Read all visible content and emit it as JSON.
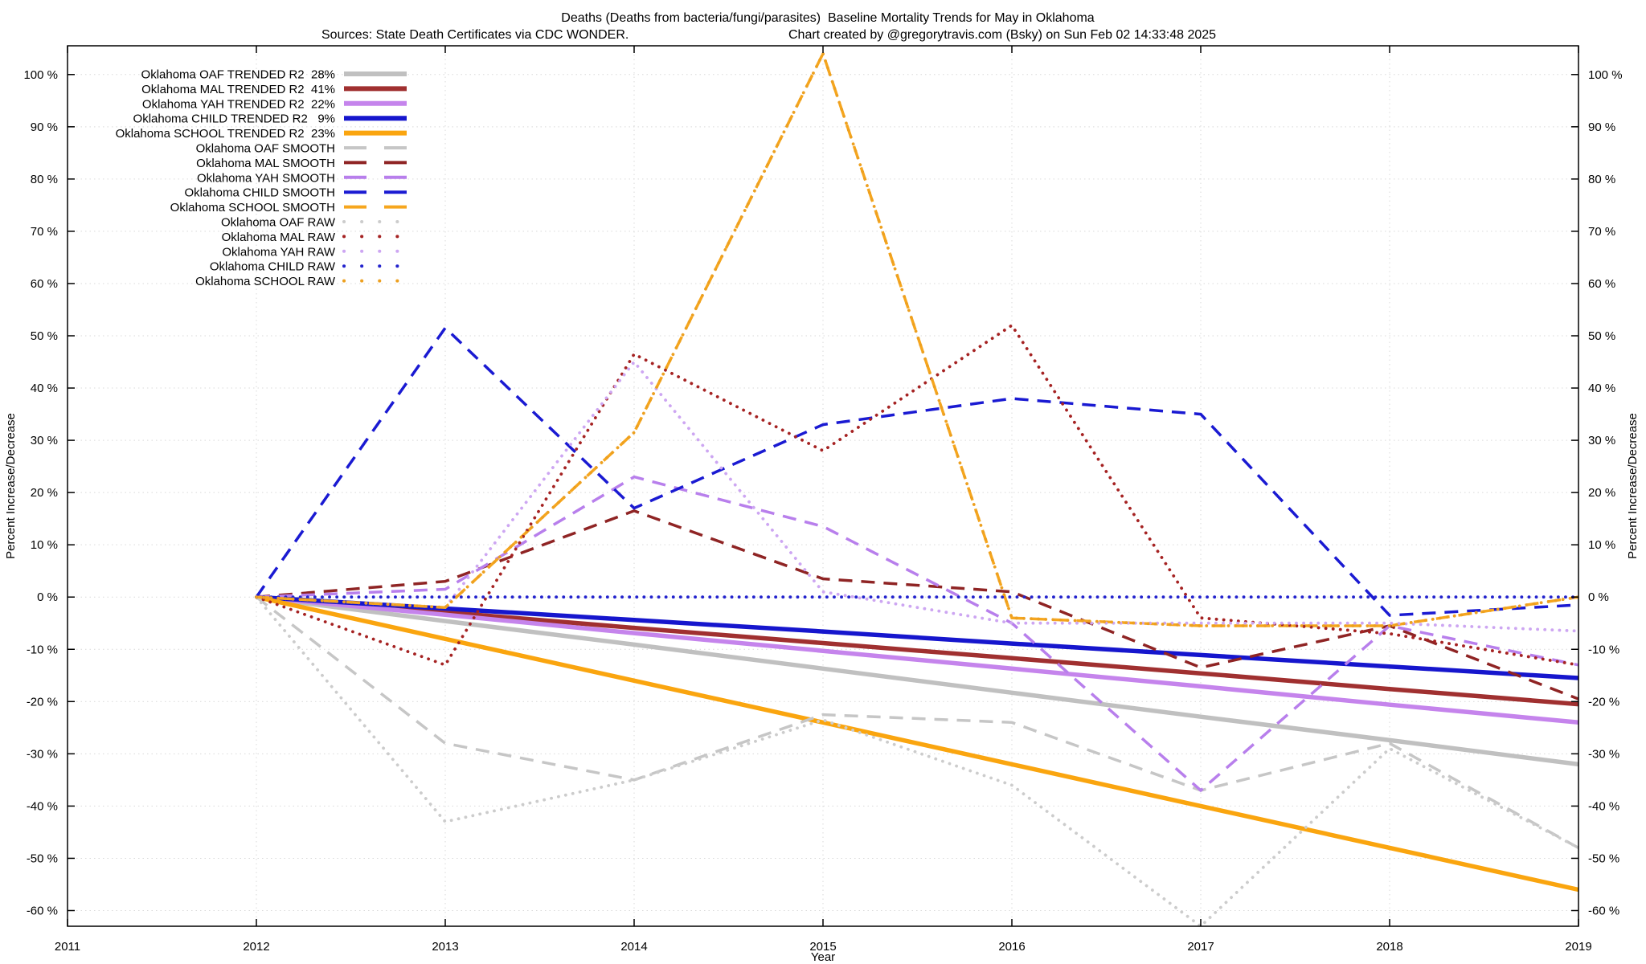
{
  "header": {
    "title": "Deaths (Deaths from bacteria/fungi/parasites)  Baseline Mortality Trends for May in Oklahoma",
    "subtitle_sources": "Sources: State Death Certificates via CDC WONDER.",
    "subtitle_credit": "Chart created by @gregorytravis.com (Bsky) on Sun Feb 02 14:33:48 2025"
  },
  "chart_data": {
    "type": "line",
    "title": "Deaths (Deaths from bacteria/fungi/parasites)  Baseline Mortality Trends for May in Oklahoma",
    "xlabel": "Year",
    "ylabel_left": "Percent Increase/Decrease",
    "ylabel_right": "Percent Increase/Decrease",
    "xlim": [
      2011,
      2019
    ],
    "ylim": [
      -63,
      105.5
    ],
    "grid": true,
    "legend_position": "top-left",
    "xticks": [
      2011,
      2012,
      2013,
      2014,
      2015,
      2016,
      2017,
      2018,
      2019
    ],
    "yticks": [
      100,
      90,
      80,
      70,
      60,
      50,
      40,
      30,
      20,
      10,
      0,
      -10,
      -20,
      -30,
      -40,
      -50,
      -60
    ],
    "ytick_suffix": " %",
    "x": [
      2012,
      2013,
      2014,
      2015,
      2016,
      2017,
      2018,
      2019
    ],
    "series": [
      {
        "id": "oaf-trended",
        "legend": "Oklahoma OAF TRENDED R2  28%",
        "r2": "28%",
        "style": "solid",
        "color": "#c0c0c0",
        "values": [
          0,
          -4.6,
          -9.1,
          -13.7,
          -18.3,
          -22.9,
          -27.4,
          -32
        ]
      },
      {
        "id": "mal-trended",
        "legend": "Oklahoma MAL TRENDED R2  41%",
        "r2": "41%",
        "style": "solid",
        "color": "#a03030",
        "values": [
          0,
          -2.9,
          -5.9,
          -8.8,
          -11.7,
          -14.6,
          -17.6,
          -20.5
        ]
      },
      {
        "id": "yah-trended",
        "legend": "Oklahoma YAH TRENDED R2  22%",
        "r2": "22%",
        "style": "solid",
        "color": "#c584ec",
        "values": [
          0,
          -3.4,
          -6.9,
          -10.3,
          -13.7,
          -17.1,
          -20.6,
          -24
        ]
      },
      {
        "id": "child-trended",
        "legend": "Oklahoma CHILD TRENDED R2   9%",
        "r2": "9%",
        "style": "solid",
        "color": "#1616cd",
        "values": [
          0,
          -2.2,
          -4.4,
          -6.6,
          -8.9,
          -11.1,
          -13.3,
          -15.5
        ]
      },
      {
        "id": "school-trended",
        "legend": "Oklahoma SCHOOL TRENDED R2  23%",
        "r2": "23%",
        "style": "solid",
        "color": "#faa50f",
        "values": [
          0,
          -8,
          -16,
          -24,
          -32,
          -40,
          -48,
          -56
        ]
      },
      {
        "id": "oaf-smooth",
        "legend": "Oklahoma OAF SMOOTH",
        "style": "dashed",
        "color": "#c6c6c6",
        "values": [
          0,
          -28,
          -35,
          -22.5,
          -24,
          -37,
          -28,
          -48
        ]
      },
      {
        "id": "mal-smooth",
        "legend": "Oklahoma MAL SMOOTH",
        "style": "dashed",
        "color": "#8f2424",
        "values": [
          0,
          3,
          16.5,
          3.5,
          1,
          -13.5,
          -5.5,
          -19.5
        ]
      },
      {
        "id": "yah-smooth",
        "legend": "Oklahoma YAH SMOOTH",
        "style": "dashed",
        "color": "#b87fec",
        "values": [
          0,
          1.5,
          23,
          13.5,
          -5,
          -37,
          -5.5,
          -13
        ]
      },
      {
        "id": "child-smooth",
        "legend": "Oklahoma CHILD SMOOTH",
        "style": "dashed",
        "color": "#1a1ad2",
        "values": [
          0,
          51.5,
          17,
          33,
          38,
          35,
          -3.5,
          -1.5
        ]
      },
      {
        "id": "school-smooth",
        "legend": "Oklahoma SCHOOL SMOOTH",
        "style": "dashed",
        "color": "#f6a61e",
        "values": [
          0,
          -2,
          31.5,
          104,
          -4,
          -5.5,
          -5.5,
          0
        ]
      },
      {
        "id": "oaf-raw",
        "legend": "Oklahoma OAF RAW",
        "style": "dotted",
        "color": "#cccccc",
        "values": [
          0,
          -43,
          -35,
          -23.5,
          -36,
          -63,
          -29,
          -48
        ]
      },
      {
        "id": "mal-raw",
        "legend": "Oklahoma MAL RAW",
        "style": "dotted",
        "color": "#a52222",
        "values": [
          0,
          -13,
          46.5,
          28,
          52,
          -4,
          -7,
          -13
        ]
      },
      {
        "id": "yah-raw",
        "legend": "Oklahoma YAH RAW",
        "style": "dotted",
        "color": "#cda6f2",
        "values": [
          0,
          -2,
          45,
          1,
          -5,
          -5,
          -5,
          -6.5
        ]
      },
      {
        "id": "child-raw",
        "legend": "Oklahoma CHILD RAW",
        "style": "dotted",
        "color": "#2424cd",
        "values": [
          0,
          0,
          0,
          0,
          0,
          0,
          0,
          0
        ]
      },
      {
        "id": "school-raw",
        "legend": "Oklahoma SCHOOL RAW",
        "style": "dotted",
        "color": "#eda020",
        "values": [
          0,
          -2,
          31.5,
          104,
          -4,
          -5.5,
          -5.5,
          0
        ]
      }
    ]
  }
}
